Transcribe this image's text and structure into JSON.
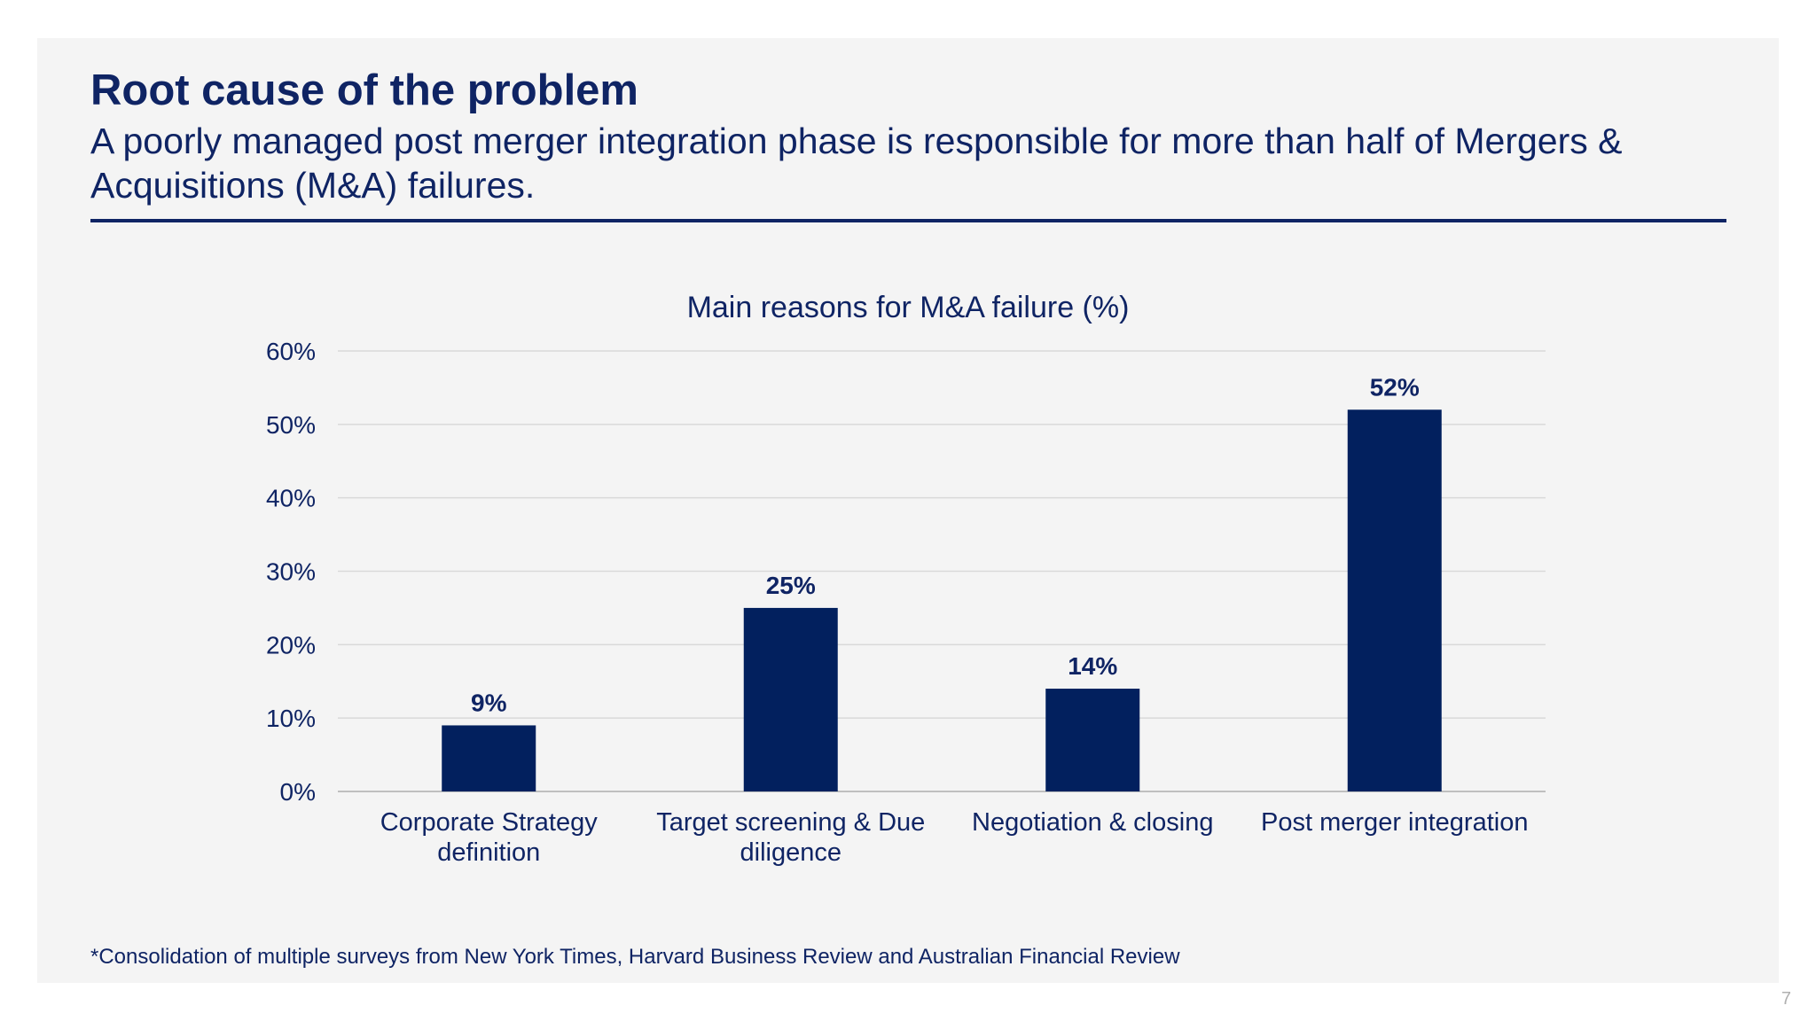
{
  "slide": {
    "title": "Root cause of the problem",
    "subtitle": "A poorly managed post merger integration phase is responsible for more than half of Mergers & Acquisitions (M&A) failures.",
    "footnote": "*Consolidation of multiple surveys from New York Times, Harvard Business Review and Australian Financial Review",
    "page_number": "7"
  },
  "colors": {
    "accent": "#0f2464",
    "bar": "#02205e",
    "panel_background": "#f4f4f4",
    "gridline": "#d9d9d9"
  },
  "chart_data": {
    "type": "bar",
    "title": "Main reasons for M&A failure (%)",
    "xlabel": "",
    "ylabel": "",
    "categories": [
      "Corporate Strategy definition",
      "Target screening & Due diligence",
      "Negotiation & closing",
      "Post merger integration"
    ],
    "category_label_lines": [
      [
        "Corporate Strategy",
        "definition"
      ],
      [
        "Target screening & Due",
        "diligence"
      ],
      [
        "Negotiation & closing"
      ],
      [
        "Post merger integration"
      ]
    ],
    "values": [
      9,
      25,
      14,
      52
    ],
    "data_labels": [
      "9%",
      "25%",
      "14%",
      "52%"
    ],
    "ylim": [
      0,
      60
    ],
    "yticks": [
      0,
      10,
      20,
      30,
      40,
      50,
      60
    ],
    "ytick_labels": [
      "0%",
      "10%",
      "20%",
      "30%",
      "40%",
      "50%",
      "60%"
    ],
    "grid": true,
    "legend": "none"
  }
}
